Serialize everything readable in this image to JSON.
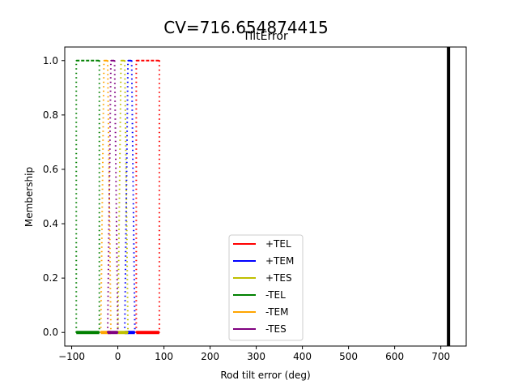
{
  "figure": {
    "suptitle": "CV=716.654874415"
  },
  "chart_data": {
    "type": "line",
    "title": "TiltError",
    "xlabel": "Rod tilt error (deg)",
    "ylabel": "Membership",
    "xlim": [
      -115,
      755
    ],
    "ylim": [
      -0.05,
      1.05
    ],
    "xticks": [
      -100,
      0,
      100,
      200,
      300,
      400,
      500,
      600,
      700
    ],
    "yticks": [
      0.0,
      0.2,
      0.4,
      0.6,
      0.8,
      1.0
    ],
    "xtick_labels": [
      "−100",
      "0",
      "100",
      "200",
      "300",
      "400",
      "500",
      "600",
      "700"
    ],
    "ytick_labels": [
      "0.0",
      "0.2",
      "0.4",
      "0.6",
      "0.8",
      "1.0"
    ],
    "grid": false,
    "legend_position": "lower center",
    "series": [
      {
        "name": "+TEL",
        "color": "#ff0000",
        "x": [
          40,
          40,
          90,
          90
        ],
        "y": [
          0,
          1,
          1,
          0
        ]
      },
      {
        "name": "+TEM",
        "color": "#0000ff",
        "x": [
          15,
          22,
          30,
          37
        ],
        "y": [
          0,
          1,
          1,
          0
        ]
      },
      {
        "name": "+TES",
        "color": "#bfbf00",
        "x": [
          0,
          7,
          15,
          22
        ],
        "y": [
          0,
          1,
          1,
          0
        ]
      },
      {
        "name": "-TEL",
        "color": "#008000",
        "x": [
          -90,
          -90,
          -40,
          -40
        ],
        "y": [
          0,
          1,
          1,
          0
        ]
      },
      {
        "name": "-TEM",
        "color": "#ffa500",
        "x": [
          -37,
          -30,
          -22,
          -15
        ],
        "y": [
          0,
          1,
          1,
          0
        ]
      },
      {
        "name": "-TES",
        "color": "#800080",
        "x": [
          -22,
          -15,
          -7,
          0
        ],
        "y": [
          0,
          1,
          1,
          0
        ]
      }
    ],
    "vline": {
      "x": 716.654874415,
      "color": "#000000"
    }
  }
}
